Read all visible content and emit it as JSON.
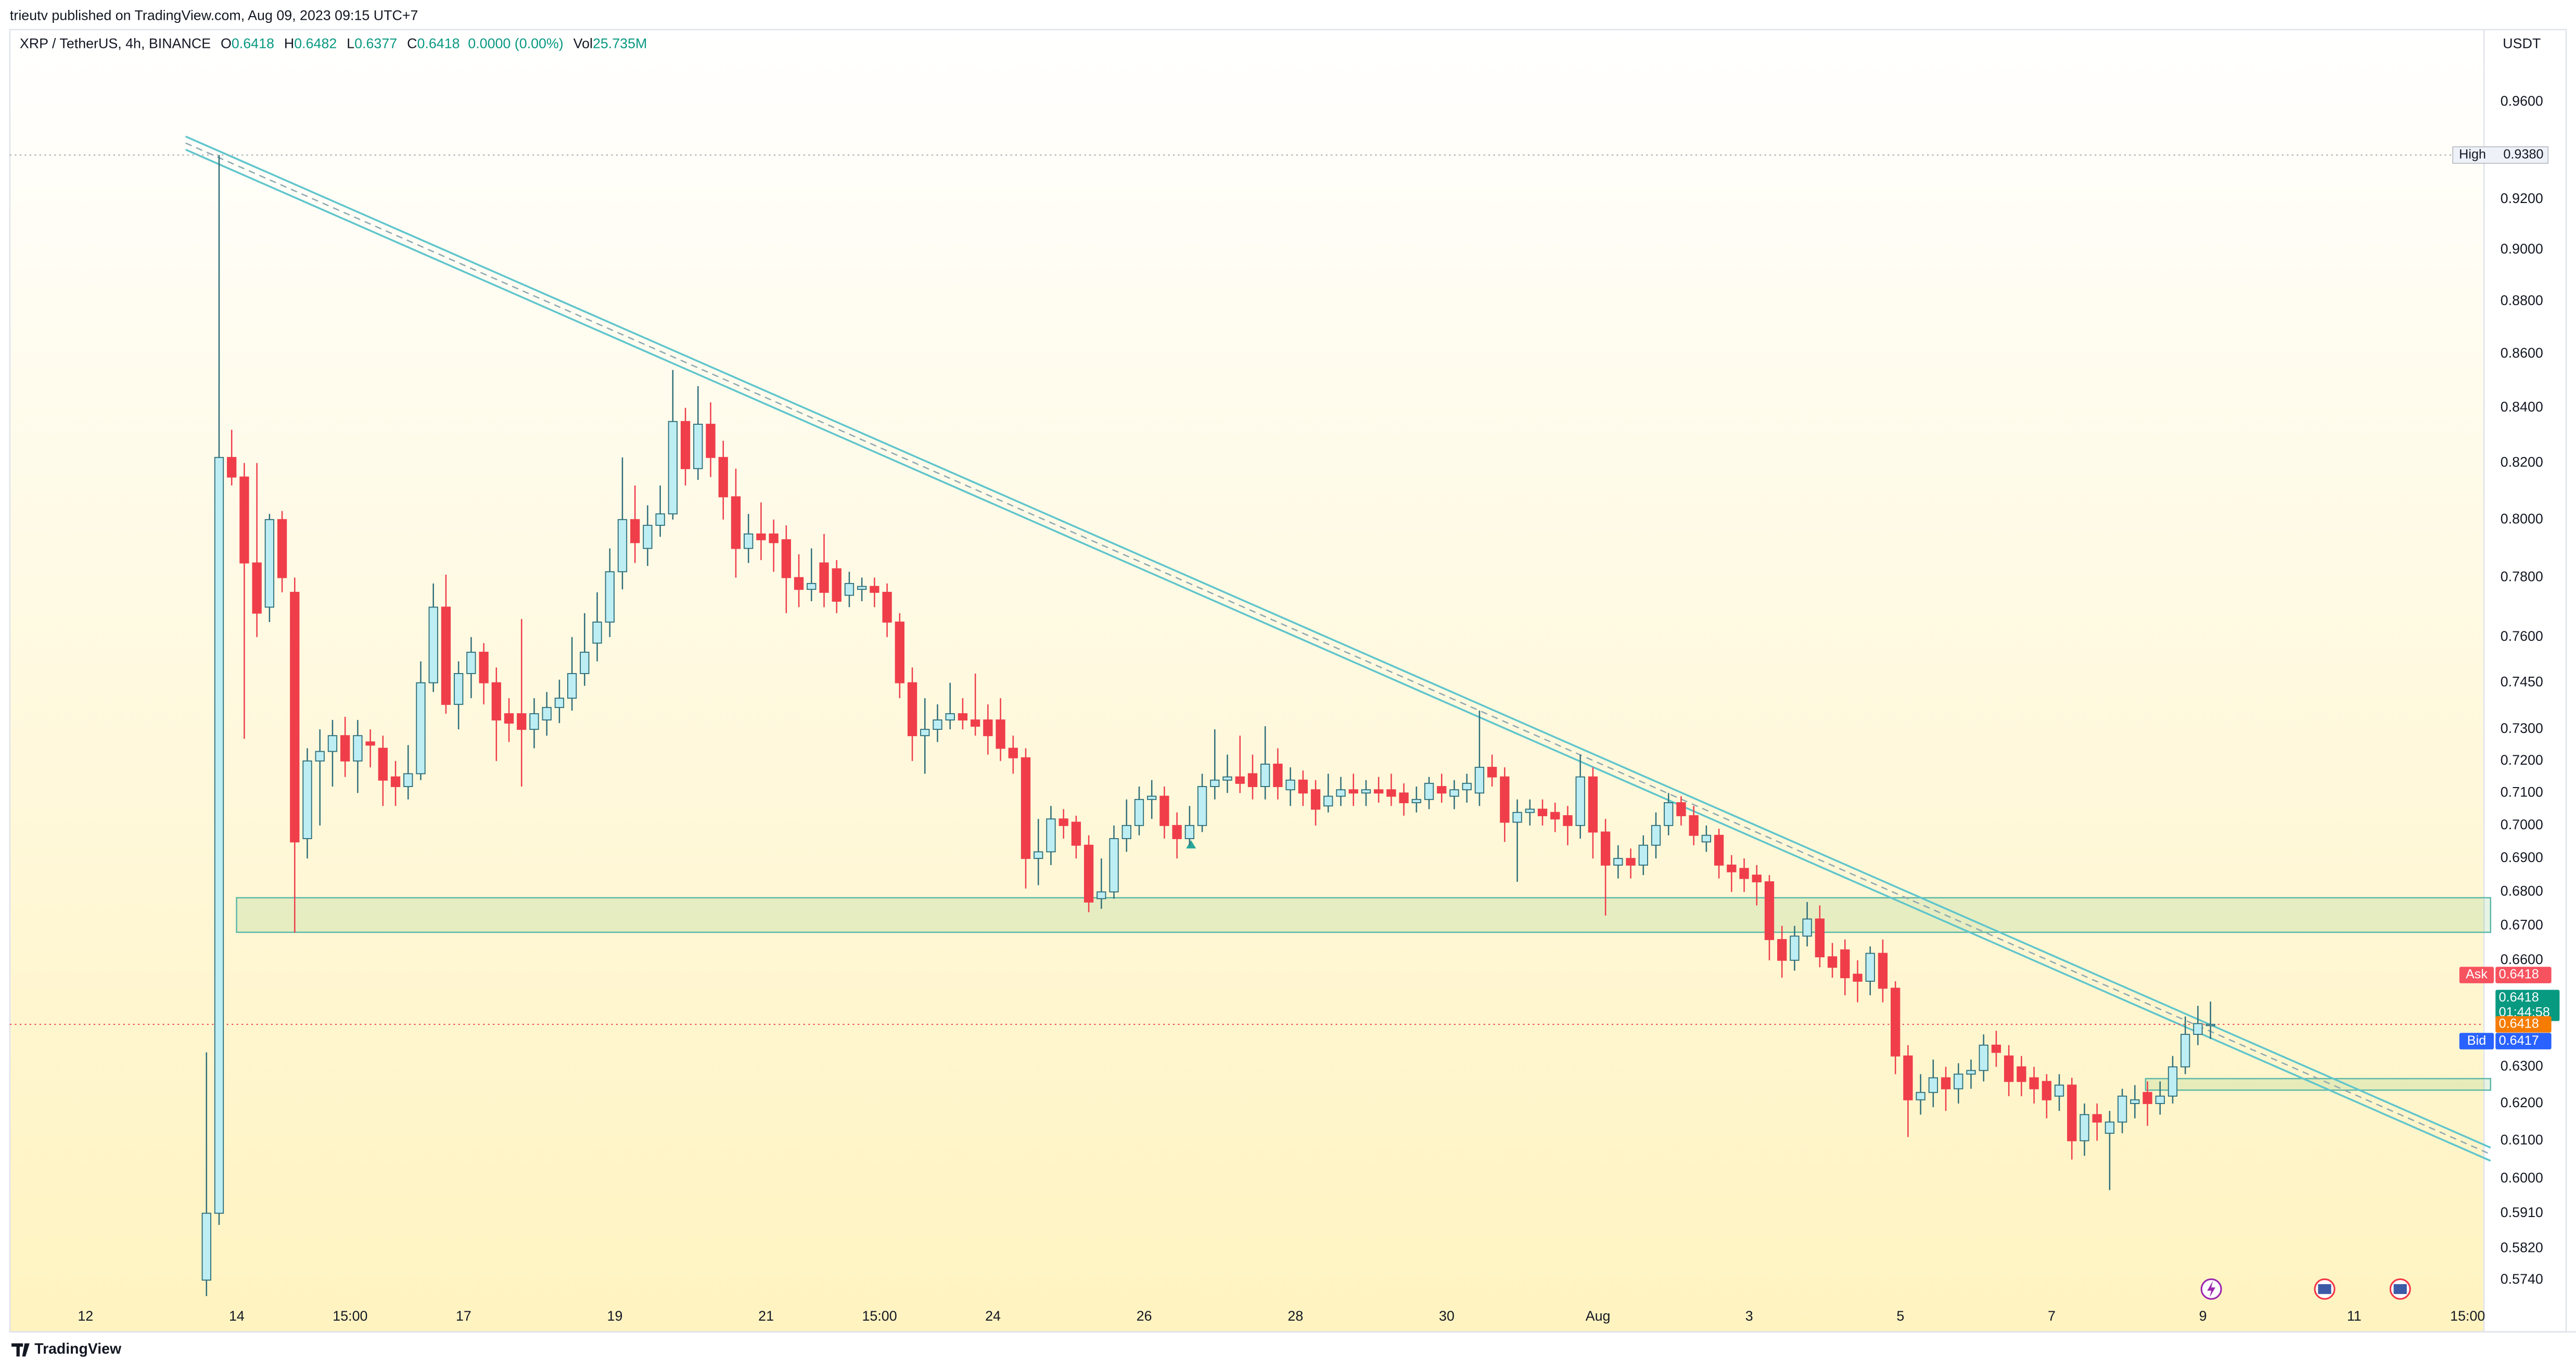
{
  "header": {
    "publisher": "trieutv published on TradingView.com, Aug 09, 2023 09:15 UTC+7"
  },
  "chart_data": {
    "type": "candlestick",
    "log_scale": true,
    "grid": false,
    "legend": {
      "symbol": "XRP / TetherUS, 4h, BINANCE",
      "fields": [
        {
          "key": "O",
          "value": "0.6418"
        },
        {
          "key": "H",
          "value": "0.6482"
        },
        {
          "key": "L",
          "value": "0.6377"
        },
        {
          "key": "C",
          "value": "0.6418"
        }
      ],
      "change": "0.0000 (0.00%)",
      "volume": {
        "key": "Vol",
        "value": "25.735M"
      }
    },
    "currency": "USDT",
    "up_color": "#bdeef4",
    "down_color": "#ef3e4a",
    "border_color": "#2f6f7a",
    "candles": [
      [
        0.574,
        0.634,
        0.57,
        0.591
      ],
      [
        0.591,
        0.938,
        0.588,
        0.822
      ],
      [
        0.822,
        0.832,
        0.812,
        0.815
      ],
      [
        0.815,
        0.82,
        0.727,
        0.785
      ],
      [
        0.785,
        0.82,
        0.76,
        0.768
      ],
      [
        0.77,
        0.802,
        0.765,
        0.8
      ],
      [
        0.8,
        0.803,
        0.775,
        0.78
      ],
      [
        0.775,
        0.78,
        0.668,
        0.695
      ],
      [
        0.696,
        0.724,
        0.69,
        0.72
      ],
      [
        0.72,
        0.73,
        0.7,
        0.723
      ],
      [
        0.723,
        0.733,
        0.712,
        0.728
      ],
      [
        0.728,
        0.734,
        0.715,
        0.72
      ],
      [
        0.72,
        0.733,
        0.71,
        0.728
      ],
      [
        0.726,
        0.73,
        0.718,
        0.725
      ],
      [
        0.724,
        0.728,
        0.706,
        0.714
      ],
      [
        0.715,
        0.72,
        0.706,
        0.712
      ],
      [
        0.712,
        0.725,
        0.708,
        0.716
      ],
      [
        0.716,
        0.752,
        0.714,
        0.745
      ],
      [
        0.745,
        0.778,
        0.742,
        0.77
      ],
      [
        0.77,
        0.781,
        0.735,
        0.738
      ],
      [
        0.738,
        0.752,
        0.73,
        0.748
      ],
      [
        0.748,
        0.76,
        0.74,
        0.755
      ],
      [
        0.755,
        0.758,
        0.738,
        0.745
      ],
      [
        0.745,
        0.75,
        0.72,
        0.733
      ],
      [
        0.735,
        0.74,
        0.726,
        0.732
      ],
      [
        0.735,
        0.766,
        0.712,
        0.73
      ],
      [
        0.73,
        0.74,
        0.724,
        0.735
      ],
      [
        0.733,
        0.742,
        0.728,
        0.737
      ],
      [
        0.737,
        0.746,
        0.732,
        0.74
      ],
      [
        0.74,
        0.76,
        0.736,
        0.748
      ],
      [
        0.748,
        0.768,
        0.744,
        0.755
      ],
      [
        0.758,
        0.775,
        0.752,
        0.765
      ],
      [
        0.765,
        0.79,
        0.76,
        0.782
      ],
      [
        0.782,
        0.822,
        0.776,
        0.8
      ],
      [
        0.8,
        0.812,
        0.785,
        0.792
      ],
      [
        0.79,
        0.805,
        0.784,
        0.798
      ],
      [
        0.798,
        0.812,
        0.794,
        0.802
      ],
      [
        0.802,
        0.854,
        0.8,
        0.835
      ],
      [
        0.835,
        0.84,
        0.812,
        0.818
      ],
      [
        0.818,
        0.848,
        0.814,
        0.834
      ],
      [
        0.834,
        0.842,
        0.815,
        0.822
      ],
      [
        0.822,
        0.828,
        0.8,
        0.808
      ],
      [
        0.808,
        0.818,
        0.78,
        0.79
      ],
      [
        0.79,
        0.802,
        0.785,
        0.795
      ],
      [
        0.795,
        0.806,
        0.786,
        0.793
      ],
      [
        0.795,
        0.8,
        0.782,
        0.792
      ],
      [
        0.793,
        0.798,
        0.768,
        0.78
      ],
      [
        0.78,
        0.788,
        0.77,
        0.776
      ],
      [
        0.776,
        0.79,
        0.772,
        0.778
      ],
      [
        0.785,
        0.795,
        0.77,
        0.775
      ],
      [
        0.783,
        0.786,
        0.768,
        0.772
      ],
      [
        0.774,
        0.782,
        0.77,
        0.778
      ],
      [
        0.776,
        0.78,
        0.772,
        0.777
      ],
      [
        0.777,
        0.78,
        0.77,
        0.775
      ],
      [
        0.775,
        0.778,
        0.76,
        0.765
      ],
      [
        0.765,
        0.768,
        0.74,
        0.745
      ],
      [
        0.745,
        0.75,
        0.72,
        0.728
      ],
      [
        0.728,
        0.74,
        0.716,
        0.73
      ],
      [
        0.73,
        0.738,
        0.726,
        0.733
      ],
      [
        0.733,
        0.745,
        0.73,
        0.735
      ],
      [
        0.735,
        0.74,
        0.73,
        0.733
      ],
      [
        0.733,
        0.748,
        0.728,
        0.731
      ],
      [
        0.733,
        0.738,
        0.722,
        0.728
      ],
      [
        0.733,
        0.74,
        0.72,
        0.724
      ],
      [
        0.724,
        0.728,
        0.716,
        0.721
      ],
      [
        0.721,
        0.724,
        0.681,
        0.69
      ],
      [
        0.69,
        0.702,
        0.682,
        0.692
      ],
      [
        0.692,
        0.706,
        0.688,
        0.702
      ],
      [
        0.702,
        0.705,
        0.696,
        0.7
      ],
      [
        0.701,
        0.703,
        0.69,
        0.694
      ],
      [
        0.694,
        0.697,
        0.674,
        0.677
      ],
      [
        0.678,
        0.69,
        0.675,
        0.68
      ],
      [
        0.68,
        0.7,
        0.678,
        0.696
      ],
      [
        0.696,
        0.708,
        0.692,
        0.7
      ],
      [
        0.7,
        0.712,
        0.697,
        0.708
      ],
      [
        0.708,
        0.714,
        0.702,
        0.709
      ],
      [
        0.709,
        0.712,
        0.696,
        0.7
      ],
      [
        0.7,
        0.704,
        0.69,
        0.696
      ],
      [
        0.696,
        0.706,
        0.694,
        0.7
      ],
      [
        0.7,
        0.716,
        0.698,
        0.712
      ],
      [
        0.712,
        0.73,
        0.708,
        0.714
      ],
      [
        0.714,
        0.722,
        0.71,
        0.715
      ],
      [
        0.715,
        0.728,
        0.71,
        0.713
      ],
      [
        0.716,
        0.722,
        0.708,
        0.712
      ],
      [
        0.712,
        0.731,
        0.708,
        0.719
      ],
      [
        0.719,
        0.724,
        0.708,
        0.712
      ],
      [
        0.711,
        0.718,
        0.706,
        0.714
      ],
      [
        0.714,
        0.717,
        0.706,
        0.71
      ],
      [
        0.711,
        0.714,
        0.7,
        0.705
      ],
      [
        0.706,
        0.716,
        0.704,
        0.709
      ],
      [
        0.709,
        0.715,
        0.706,
        0.711
      ],
      [
        0.711,
        0.716,
        0.706,
        0.71
      ],
      [
        0.71,
        0.714,
        0.706,
        0.711
      ],
      [
        0.711,
        0.715,
        0.707,
        0.71
      ],
      [
        0.711,
        0.716,
        0.706,
        0.709
      ],
      [
        0.71,
        0.713,
        0.703,
        0.707
      ],
      [
        0.707,
        0.712,
        0.704,
        0.708
      ],
      [
        0.708,
        0.715,
        0.705,
        0.713
      ],
      [
        0.712,
        0.716,
        0.707,
        0.71
      ],
      [
        0.709,
        0.714,
        0.705,
        0.711
      ],
      [
        0.711,
        0.716,
        0.707,
        0.713
      ],
      [
        0.71,
        0.736,
        0.706,
        0.718
      ],
      [
        0.718,
        0.722,
        0.712,
        0.715
      ],
      [
        0.715,
        0.718,
        0.695,
        0.701
      ],
      [
        0.701,
        0.708,
        0.683,
        0.704
      ],
      [
        0.704,
        0.708,
        0.7,
        0.705
      ],
      [
        0.705,
        0.708,
        0.7,
        0.703
      ],
      [
        0.704,
        0.707,
        0.698,
        0.702
      ],
      [
        0.703,
        0.706,
        0.694,
        0.7
      ],
      [
        0.7,
        0.722,
        0.696,
        0.715
      ],
      [
        0.715,
        0.718,
        0.69,
        0.698
      ],
      [
        0.698,
        0.702,
        0.673,
        0.688
      ],
      [
        0.688,
        0.694,
        0.684,
        0.69
      ],
      [
        0.69,
        0.693,
        0.684,
        0.688
      ],
      [
        0.688,
        0.697,
        0.685,
        0.694
      ],
      [
        0.694,
        0.704,
        0.69,
        0.7
      ],
      [
        0.7,
        0.71,
        0.697,
        0.707
      ],
      [
        0.707,
        0.709,
        0.7,
        0.703
      ],
      [
        0.703,
        0.706,
        0.694,
        0.697
      ],
      [
        0.695,
        0.7,
        0.692,
        0.697
      ],
      [
        0.697,
        0.699,
        0.684,
        0.688
      ],
      [
        0.688,
        0.691,
        0.68,
        0.686
      ],
      [
        0.687,
        0.69,
        0.68,
        0.684
      ],
      [
        0.685,
        0.688,
        0.676,
        0.683
      ],
      [
        0.683,
        0.685,
        0.66,
        0.666
      ],
      [
        0.666,
        0.67,
        0.655,
        0.66
      ],
      [
        0.66,
        0.67,
        0.657,
        0.667
      ],
      [
        0.667,
        0.677,
        0.664,
        0.672
      ],
      [
        0.672,
        0.676,
        0.658,
        0.661
      ],
      [
        0.661,
        0.665,
        0.655,
        0.658
      ],
      [
        0.663,
        0.666,
        0.65,
        0.655
      ],
      [
        0.656,
        0.66,
        0.648,
        0.654
      ],
      [
        0.654,
        0.664,
        0.65,
        0.662
      ],
      [
        0.662,
        0.666,
        0.648,
        0.652
      ],
      [
        0.652,
        0.654,
        0.628,
        0.633
      ],
      [
        0.633,
        0.636,
        0.611,
        0.621
      ],
      [
        0.621,
        0.628,
        0.617,
        0.623
      ],
      [
        0.623,
        0.632,
        0.619,
        0.627
      ],
      [
        0.627,
        0.63,
        0.618,
        0.624
      ],
      [
        0.624,
        0.631,
        0.62,
        0.628
      ],
      [
        0.628,
        0.632,
        0.624,
        0.629
      ],
      [
        0.629,
        0.639,
        0.626,
        0.636
      ],
      [
        0.636,
        0.64,
        0.63,
        0.634
      ],
      [
        0.633,
        0.636,
        0.622,
        0.626
      ],
      [
        0.63,
        0.633,
        0.622,
        0.626
      ],
      [
        0.627,
        0.63,
        0.62,
        0.624
      ],
      [
        0.626,
        0.628,
        0.616,
        0.621
      ],
      [
        0.622,
        0.628,
        0.618,
        0.625
      ],
      [
        0.625,
        0.627,
        0.605,
        0.61
      ],
      [
        0.61,
        0.62,
        0.606,
        0.617
      ],
      [
        0.617,
        0.62,
        0.61,
        0.615
      ],
      [
        0.612,
        0.618,
        0.597,
        0.615
      ],
      [
        0.615,
        0.624,
        0.612,
        0.622
      ],
      [
        0.62,
        0.625,
        0.616,
        0.621
      ],
      [
        0.623,
        0.626,
        0.614,
        0.62
      ],
      [
        0.62,
        0.626,
        0.617,
        0.622
      ],
      [
        0.622,
        0.633,
        0.62,
        0.63
      ],
      [
        0.63,
        0.644,
        0.628,
        0.639
      ],
      [
        0.639,
        0.647,
        0.636,
        0.642
      ],
      [
        0.6418,
        0.6482,
        0.6377,
        0.6418
      ]
    ],
    "xlim": [
      -15.6,
      180.7
    ],
    "xticks": [
      {
        "value": -9.6,
        "label": "12"
      },
      {
        "value": 2.4,
        "label": "14"
      },
      {
        "value": 11.4,
        "label": "15:00"
      },
      {
        "value": 20.4,
        "label": "17"
      },
      {
        "value": 32.4,
        "label": "19"
      },
      {
        "value": 44.4,
        "label": "21"
      },
      {
        "value": 53.4,
        "label": "15:00"
      },
      {
        "value": 62.4,
        "label": "24"
      },
      {
        "value": 74.4,
        "label": "26"
      },
      {
        "value": 86.4,
        "label": "28"
      },
      {
        "value": 98.4,
        "label": "30"
      },
      {
        "value": 110.4,
        "label": "Aug"
      },
      {
        "value": 122.4,
        "label": "3"
      },
      {
        "value": 134.4,
        "label": "5"
      },
      {
        "value": 146.4,
        "label": "7"
      },
      {
        "value": 158.4,
        "label": "9"
      },
      {
        "value": 170.4,
        "label": "11"
      },
      {
        "value": 179.4,
        "label": "15:00"
      }
    ],
    "ylim": [
      0.5693,
      0.9908
    ],
    "yticks": [
      {
        "value": 0.96,
        "label": "0.9600"
      },
      {
        "value": 0.92,
        "label": "0.9200"
      },
      {
        "value": 0.9,
        "label": "0.9000"
      },
      {
        "value": 0.88,
        "label": "0.8800"
      },
      {
        "value": 0.86,
        "label": "0.8600"
      },
      {
        "value": 0.84,
        "label": "0.8400"
      },
      {
        "value": 0.82,
        "label": "0.8200"
      },
      {
        "value": 0.8,
        "label": "0.8000"
      },
      {
        "value": 0.78,
        "label": "0.7800"
      },
      {
        "value": 0.76,
        "label": "0.7600"
      },
      {
        "value": 0.745,
        "label": "0.7450"
      },
      {
        "value": 0.73,
        "label": "0.7300"
      },
      {
        "value": 0.72,
        "label": "0.7200"
      },
      {
        "value": 0.71,
        "label": "0.7100"
      },
      {
        "value": 0.7,
        "label": "0.7000"
      },
      {
        "value": 0.69,
        "label": "0.6900"
      },
      {
        "value": 0.68,
        "label": "0.6800"
      },
      {
        "value": 0.67,
        "label": "0.6700"
      },
      {
        "value": 0.66,
        "label": "0.6600"
      },
      {
        "value": 0.63,
        "label": "0.6300"
      },
      {
        "value": 0.62,
        "label": "0.6200"
      },
      {
        "value": 0.61,
        "label": "0.6100"
      },
      {
        "value": 0.6,
        "label": "0.6000"
      },
      {
        "value": 0.591,
        "label": "0.5910"
      },
      {
        "value": 0.582,
        "label": "0.5820"
      },
      {
        "value": 0.574,
        "label": "0.5740"
      }
    ],
    "high": {
      "name": "High",
      "value": 0.938,
      "label": "0.9380"
    },
    "price_tags": [
      {
        "name": "Ask",
        "value": 0.6418,
        "label": "0.6418",
        "color": "#f7525f"
      },
      {
        "value": 0.6418,
        "label": "0.6418",
        "countdown": "01:44:58",
        "color": "#089981"
      },
      {
        "value": 0.6418,
        "label": "0.6418",
        "color": "#f57c00"
      },
      {
        "name": "Bid",
        "value": 0.6417,
        "label": "0.6417",
        "color": "#2962ff"
      }
    ]
  },
  "footer": {
    "brand": "TradingView"
  }
}
